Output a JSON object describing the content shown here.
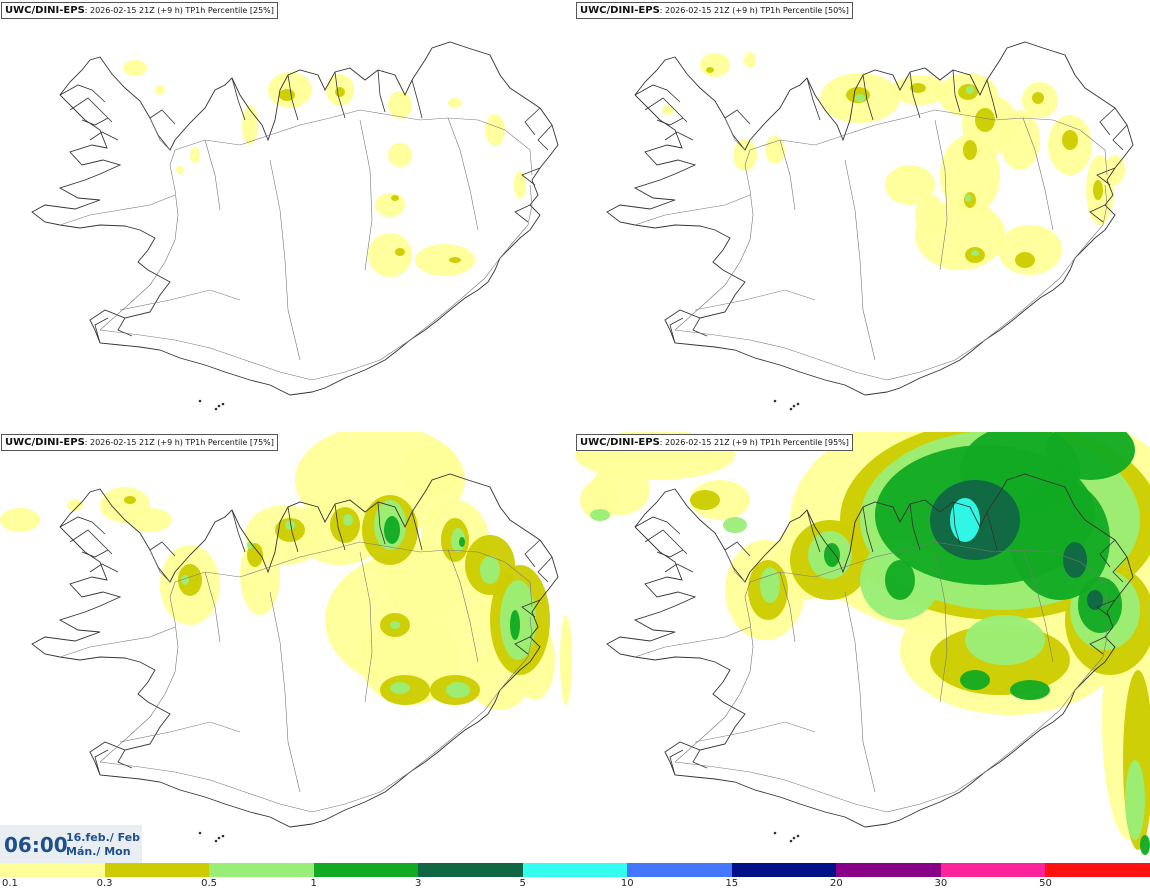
{
  "panels": [
    {
      "model": "UWC/DINI-EPS",
      "run_info": ": 2026-02-15 21Z (+9 h)",
      "field": " TP1h Percentile [25%]"
    },
    {
      "model": "UWC/DINI-EPS",
      "run_info": ": 2026-02-15 21Z (+9 h)",
      "field": " TP1h Percentile [50%]"
    },
    {
      "model": "UWC/DINI-EPS",
      "run_info": ": 2026-02-15 21Z (+9 h)",
      "field": " TP1h Percentile [75%]"
    },
    {
      "model": "UWC/DINI-EPS",
      "run_info": ": 2026-02-15 21Z (+9 h)",
      "field": " TP1h Percentile [95%]"
    }
  ],
  "valid_time": {
    "time": "06:00",
    "date_line1": "16.feb./ Feb",
    "date_line2": "Mán./ Mon"
  },
  "legend": {
    "tick_labels": [
      "0.1",
      "0.3",
      "0.5",
      "1",
      "3",
      "5",
      "10",
      "15",
      "20",
      "30",
      "50"
    ],
    "colors": [
      "#ffff99",
      "#cccc00",
      "#99ee77",
      "#11aa22",
      "#116644",
      "#33ffee",
      "#4477ff",
      "#001188",
      "#880088",
      "#ff2299",
      "#ff1111"
    ]
  }
}
